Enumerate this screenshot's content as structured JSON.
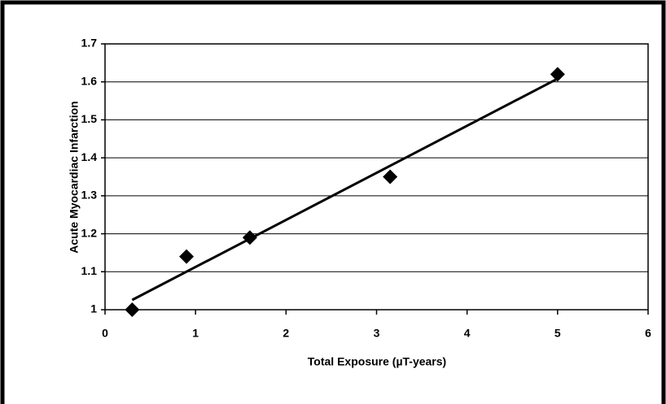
{
  "chart_data": {
    "type": "scatter",
    "x_label": "Total Exposure (µT-years)",
    "y_label": "Acute Myocardiac Infarction",
    "series": [
      {
        "x": [
          0.3,
          0.9,
          1.6,
          3.15,
          5.0
        ],
        "values": [
          1.0,
          1.14,
          1.19,
          1.35,
          1.62
        ],
        "color": "#000000",
        "trendline": "linear"
      }
    ],
    "xlim": [
      0,
      6
    ],
    "xticks": [
      0,
      1,
      2,
      3,
      4,
      5,
      6
    ],
    "ylim": [
      1,
      1.7
    ],
    "yticks": [
      1,
      1.1,
      1.2,
      1.3,
      1.4,
      1.5,
      1.6,
      1.7
    ],
    "grid": true
  }
}
